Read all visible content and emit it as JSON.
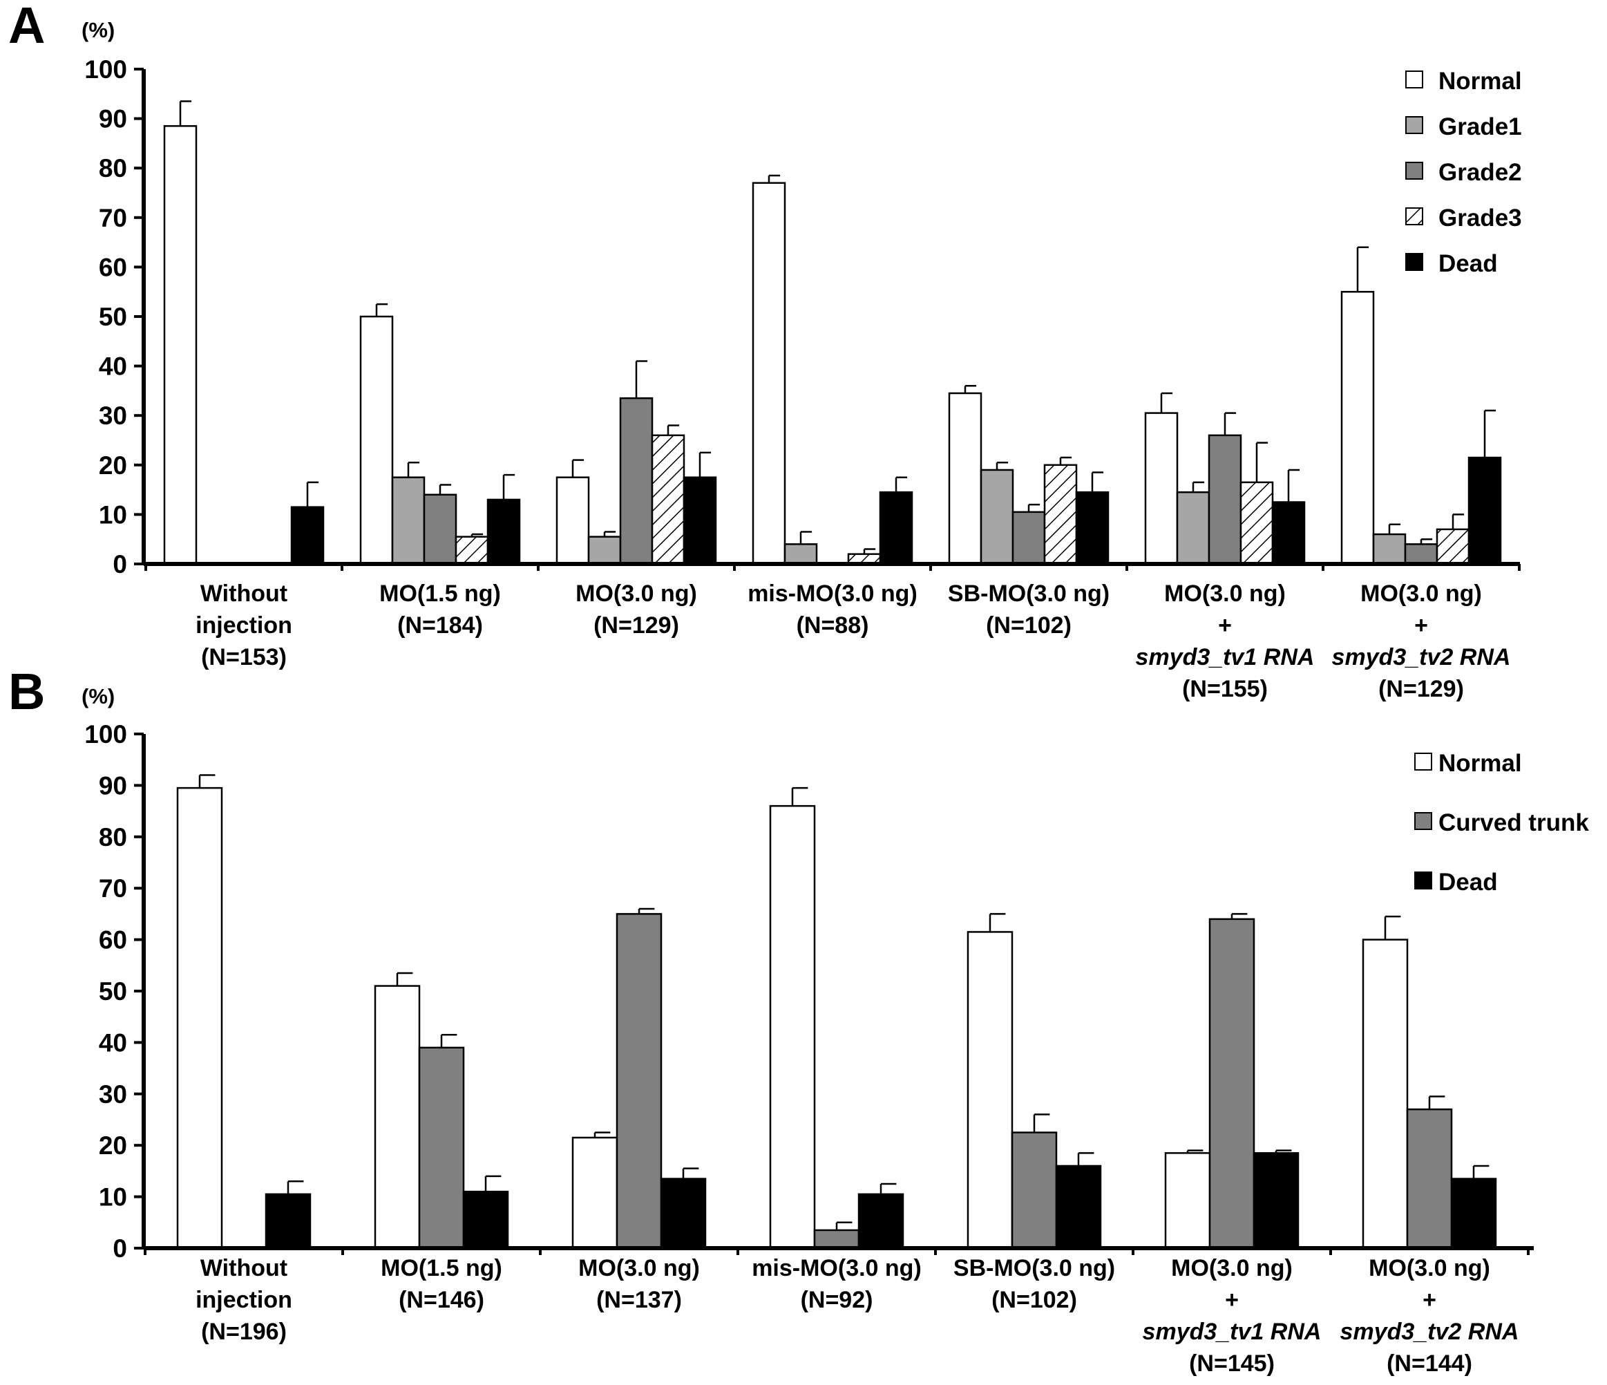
{
  "colors": {
    "Normal": "#ffffff",
    "Grade1": "#a6a6a6",
    "Grade2": "#808080",
    "Grade3": "hatch",
    "Curved trunk": "#808080",
    "Dead": "#000000"
  },
  "chart_data": [
    {
      "panel": "A",
      "type": "bar",
      "unit_label": "(%)",
      "ylim": [
        0,
        100
      ],
      "yticks": [
        0,
        10,
        20,
        30,
        40,
        50,
        60,
        70,
        80,
        90,
        100
      ],
      "legend_position": "top-right",
      "grid": false,
      "categories": [
        [
          "Without",
          "injection",
          "(N=153)"
        ],
        [
          "MO(1.5 ng)",
          "(N=184)"
        ],
        [
          "MO(3.0 ng)",
          "(N=129)"
        ],
        [
          "mis-MO(3.0 ng)",
          "(N=88)"
        ],
        [
          "SB-MO(3.0 ng)",
          "(N=102)"
        ],
        [
          "MO(3.0 ng)",
          "+",
          "smyd3_tv1 RNA",
          "(N=155)"
        ],
        [
          "MO(3.0 ng)",
          "+",
          "smyd3_tv2 RNA",
          "(N=129)"
        ]
      ],
      "series": [
        {
          "name": "Normal",
          "values": [
            88.5,
            50.0,
            17.5,
            77.0,
            34.5,
            30.5,
            55.0
          ],
          "errors": [
            5.0,
            2.5,
            3.5,
            1.5,
            1.5,
            4.0,
            9.0
          ]
        },
        {
          "name": "Grade1",
          "values": [
            0,
            17.5,
            5.5,
            4.0,
            19.0,
            14.5,
            6.0
          ],
          "errors": [
            0,
            3.0,
            1.0,
            2.5,
            1.5,
            2.0,
            2.0
          ]
        },
        {
          "name": "Grade2",
          "values": [
            0,
            14.0,
            33.5,
            0,
            10.5,
            26.0,
            4.0
          ],
          "errors": [
            0,
            2.0,
            7.5,
            0,
            1.5,
            4.5,
            1.0
          ]
        },
        {
          "name": "Grade3",
          "values": [
            0,
            5.5,
            26.0,
            2.0,
            20.0,
            16.5,
            7.0
          ],
          "errors": [
            0,
            0.5,
            2.0,
            1.0,
            1.5,
            8.0,
            3.0
          ]
        },
        {
          "name": "Dead",
          "values": [
            11.5,
            13.0,
            17.5,
            14.5,
            14.5,
            12.5,
            21.5
          ],
          "errors": [
            5.0,
            5.0,
            5.0,
            3.0,
            4.0,
            6.5,
            9.5
          ]
        }
      ]
    },
    {
      "panel": "B",
      "type": "bar",
      "unit_label": "(%)",
      "ylim": [
        0,
        100
      ],
      "yticks": [
        0,
        10,
        20,
        30,
        40,
        50,
        60,
        70,
        80,
        90,
        100
      ],
      "legend_position": "top-right",
      "grid": false,
      "categories": [
        [
          "Without",
          "injection",
          "(N=196)"
        ],
        [
          "MO(1.5 ng)",
          "(N=146)"
        ],
        [
          "MO(3.0 ng)",
          "(N=137)"
        ],
        [
          "mis-MO(3.0 ng)",
          "(N=92)"
        ],
        [
          "SB-MO(3.0 ng)",
          "(N=102)"
        ],
        [
          "MO(3.0 ng)",
          "+",
          "smyd3_tv1 RNA",
          "(N=145)"
        ],
        [
          "MO(3.0 ng)",
          "+",
          "smyd3_tv2 RNA",
          "(N=144)"
        ]
      ],
      "series": [
        {
          "name": "Normal",
          "values": [
            89.5,
            51.0,
            21.5,
            86.0,
            61.5,
            18.5,
            60.0
          ],
          "errors": [
            2.5,
            2.5,
            1.0,
            3.5,
            3.5,
            0.5,
            4.5
          ]
        },
        {
          "name": "Curved trunk",
          "values": [
            0,
            39.0,
            65.0,
            3.5,
            22.5,
            64.0,
            27.0
          ],
          "errors": [
            0,
            2.5,
            1.0,
            1.5,
            3.5,
            1.0,
            2.5
          ]
        },
        {
          "name": "Dead",
          "values": [
            10.5,
            11.0,
            13.5,
            10.5,
            16.0,
            18.5,
            13.5
          ],
          "errors": [
            2.5,
            3.0,
            2.0,
            2.0,
            2.5,
            0.5,
            2.5
          ]
        }
      ]
    }
  ]
}
